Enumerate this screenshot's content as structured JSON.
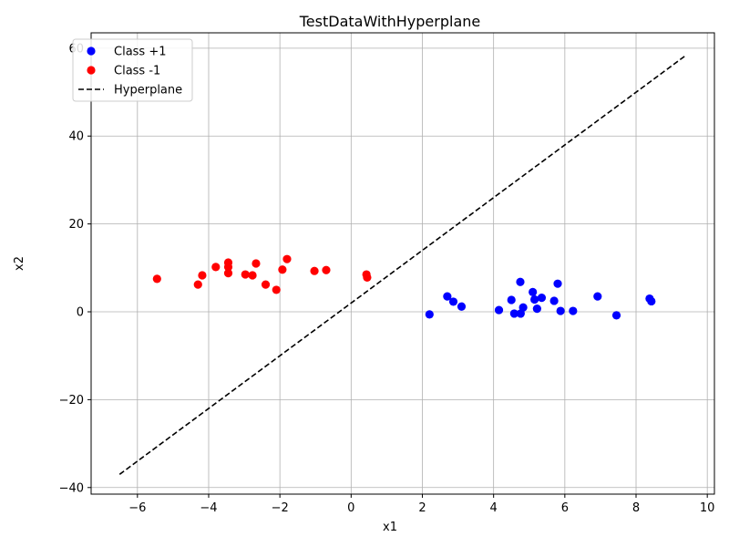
{
  "chart_data": {
    "type": "scatter",
    "title": "TestDataWithHyperplane",
    "xlabel": "x1",
    "ylabel": "x2",
    "xlim": [
      -7.3,
      10.2
    ],
    "ylim": [
      -41.5,
      63.5
    ],
    "xticks": [
      -6,
      -4,
      -2,
      0,
      2,
      4,
      6,
      8,
      10
    ],
    "yticks": [
      -40,
      -20,
      0,
      20,
      40,
      60
    ],
    "grid": true,
    "legend_position": "top-left",
    "series": [
      {
        "name": "Class +1",
        "kind": "scatter",
        "color": "#0000ff",
        "points": [
          [
            2.2,
            -0.6
          ],
          [
            2.7,
            3.5
          ],
          [
            2.87,
            2.3
          ],
          [
            3.1,
            1.2
          ],
          [
            4.15,
            0.4
          ],
          [
            4.5,
            2.7
          ],
          [
            4.58,
            -0.4
          ],
          [
            4.75,
            6.8
          ],
          [
            4.76,
            -0.4
          ],
          [
            4.83,
            1.0
          ],
          [
            5.1,
            4.5
          ],
          [
            5.15,
            2.8
          ],
          [
            5.22,
            0.7
          ],
          [
            5.35,
            3.2
          ],
          [
            5.7,
            2.5
          ],
          [
            5.8,
            6.4
          ],
          [
            5.88,
            0.2
          ],
          [
            6.23,
            0.2
          ],
          [
            6.92,
            3.5
          ],
          [
            7.45,
            -0.8
          ],
          [
            8.38,
            3.0
          ],
          [
            8.43,
            2.4
          ]
        ]
      },
      {
        "name": "Class -1",
        "kind": "scatter",
        "color": "#ff0000",
        "points": [
          [
            -5.45,
            7.5
          ],
          [
            -4.3,
            6.2
          ],
          [
            -4.18,
            8.3
          ],
          [
            -3.8,
            10.2
          ],
          [
            -3.45,
            11.2
          ],
          [
            -3.45,
            10.2
          ],
          [
            -3.45,
            8.8
          ],
          [
            -2.97,
            8.5
          ],
          [
            -2.77,
            8.3
          ],
          [
            -2.67,
            11.0
          ],
          [
            -2.4,
            6.2
          ],
          [
            -2.1,
            5.0
          ],
          [
            -1.93,
            9.6
          ],
          [
            -1.8,
            12.0
          ],
          [
            -1.03,
            9.3
          ],
          [
            -0.7,
            9.5
          ],
          [
            0.43,
            8.5
          ],
          [
            0.45,
            7.8
          ]
        ]
      },
      {
        "name": "Hyperplane",
        "kind": "line",
        "color": "#000000",
        "style": "dashed",
        "points": [
          [
            -6.5,
            -37.0
          ],
          [
            9.42,
            58.5
          ]
        ]
      }
    ]
  }
}
